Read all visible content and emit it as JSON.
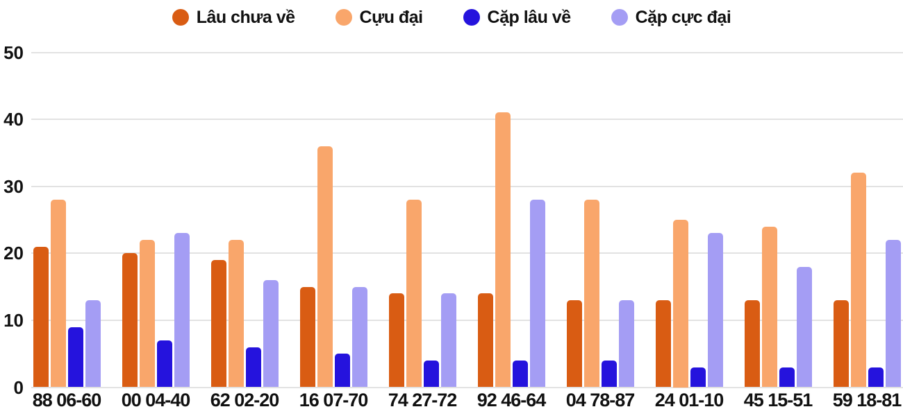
{
  "chart_data": {
    "type": "bar",
    "title": "",
    "xlabel": "",
    "ylabel": "",
    "categories": [
      "88 06-60",
      "00 04-40",
      "62 02-20",
      "16 07-70",
      "74 27-72",
      "92 46-64",
      "04 78-87",
      "24 01-10",
      "45 15-51",
      "59 18-81"
    ],
    "series": [
      {
        "name": "Lâu chưa về",
        "color": "#D95C13",
        "values": [
          21,
          20,
          19,
          15,
          14,
          14,
          13,
          13,
          13,
          13
        ]
      },
      {
        "name": "Cựu đại",
        "color": "#F9A66B",
        "values": [
          28,
          22,
          22,
          36,
          28,
          41,
          28,
          25,
          24,
          32
        ]
      },
      {
        "name": "Cặp lâu về",
        "color": "#2513DD",
        "values": [
          9,
          7,
          6,
          5,
          4,
          4,
          4,
          3,
          3,
          3
        ]
      },
      {
        "name": "Cặp cực đại",
        "color": "#A49DF4",
        "values": [
          13,
          23,
          16,
          15,
          14,
          28,
          13,
          23,
          18,
          22
        ]
      }
    ],
    "ylim": [
      0,
      50
    ],
    "yticks": [
      0,
      10,
      20,
      30,
      40,
      50
    ],
    "grid": true,
    "grid_color": "#E2E2E2",
    "text_color": "#111111",
    "legend_position": "top",
    "background_color": "#FFFFFF"
  }
}
